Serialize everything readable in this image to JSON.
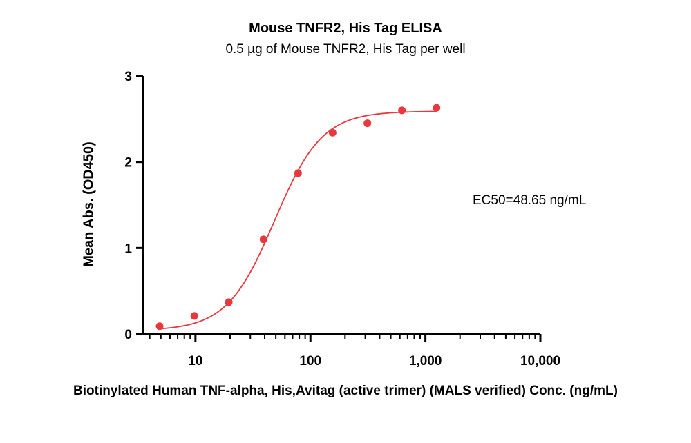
{
  "chart_data": {
    "type": "scatter",
    "title": "Mouse TNFR2, His Tag ELISA",
    "subtitle": "0.5 µg of Mouse TNFR2, His Tag per well",
    "xlabel": "Biotinylated Human TNF-alpha, His,Avitag (active trimer) (MALS verified) Conc. (ng/mL)",
    "ylabel": "Mean Abs. (OD450)",
    "x_scale": "log",
    "xlim": [
      3.5,
      10000
    ],
    "ylim": [
      0,
      3
    ],
    "x_ticks": [
      10,
      100,
      1000,
      10000
    ],
    "x_tick_labels": [
      "10",
      "100",
      "1,000",
      "10,000"
    ],
    "y_ticks": [
      0,
      1,
      2,
      3
    ],
    "y_tick_labels": [
      "0",
      "1",
      "2",
      "3"
    ],
    "annotation": "EC50=48.65 ng/mL",
    "grid": false,
    "legend": "none",
    "color": "#e8383d",
    "series": [
      {
        "x": [
          4.88,
          9.77,
          19.5,
          39.1,
          78.1,
          156,
          313,
          625,
          1250
        ],
        "y": [
          0.09,
          0.21,
          0.37,
          1.1,
          1.87,
          2.34,
          2.45,
          2.6,
          2.63
        ]
      }
    ],
    "fit_curve": {
      "model": "4PL",
      "bottom": 0.04,
      "top": 2.59,
      "ec50": 48.65,
      "hill": 2.1
    }
  }
}
